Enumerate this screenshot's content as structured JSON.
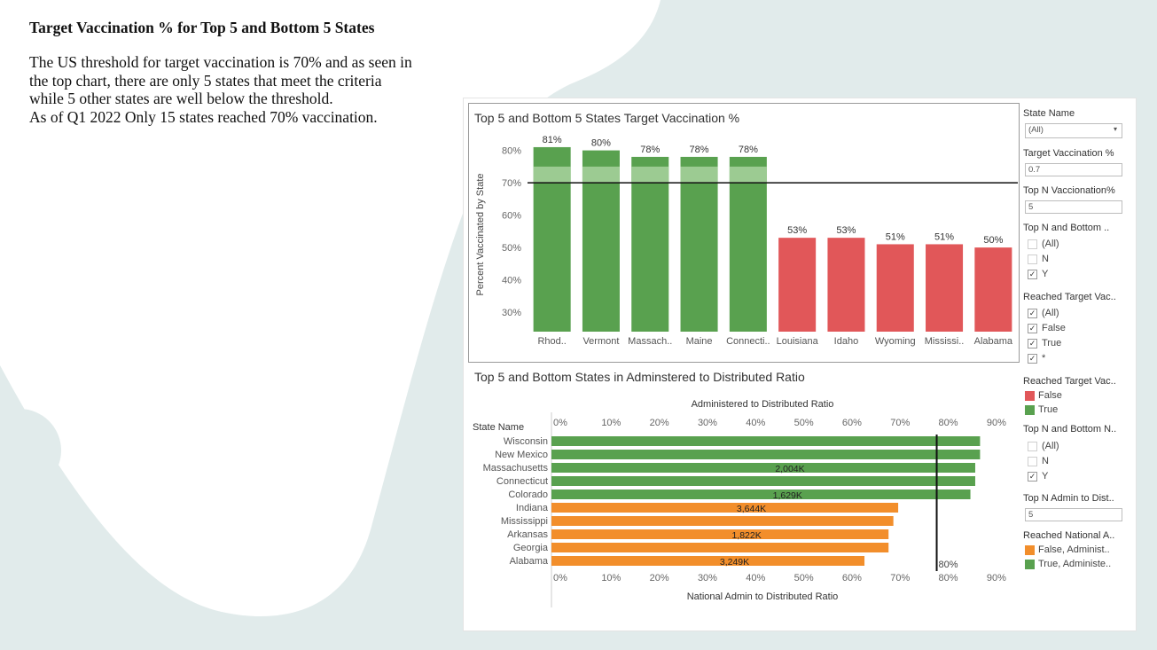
{
  "slide": {
    "title": "Target Vaccination % for Top 5 and Bottom 5 States",
    "paragraphs": [
      "The US threshold for target vaccination is 70% and as seen in",
      "the top chart, there are only 5 states that meet the criteria",
      "while 5 other states are well below the threshold.",
      "As of Q1 2022 Only 15 states reached 70% vaccination."
    ]
  },
  "colors": {
    "green": "#59a14f",
    "red": "#e15759",
    "orange": "#f28e2b",
    "green_light": "#a8d29e",
    "background": "#e1ebeb"
  },
  "chart_data": [
    {
      "type": "bar",
      "title": "Top 5 and Bottom 5 States Target Vaccination %",
      "ylabel": "Percent Vaccinated by State",
      "ylim": [
        24,
        84
      ],
      "yticks": [
        "30%",
        "40%",
        "50%",
        "60%",
        "70%",
        "80%"
      ],
      "reference_line": 70,
      "categories": [
        "Rhod..",
        "Vermont",
        "Massach..",
        "Maine",
        "Connecti..",
        "Louisiana",
        "Idaho",
        "Wyoming",
        "Mississi..",
        "Alabama"
      ],
      "values": [
        81,
        80,
        78,
        78,
        78,
        53,
        53,
        51,
        51,
        50
      ],
      "labels": [
        "81%",
        "80%",
        "78%",
        "78%",
        "78%",
        "53%",
        "53%",
        "51%",
        "51%",
        "50%"
      ],
      "reached": [
        true,
        true,
        true,
        true,
        true,
        false,
        false,
        false,
        false,
        false
      ],
      "band": [
        70,
        75
      ]
    },
    {
      "type": "bar",
      "orientation": "horizontal",
      "title": "Top 5 and Bottom States in Adminstered to Distributed Ratio",
      "top_axis_label": "Administered to Distributed Ratio",
      "xlabel": "National Admin to Distributed Ratio",
      "row_header": "State Name",
      "xlim": [
        0,
        95
      ],
      "xticks": [
        "0%",
        "10%",
        "20%",
        "30%",
        "40%",
        "50%",
        "60%",
        "70%",
        "80%",
        "90%"
      ],
      "reference_line": 80,
      "reference_label": "80%",
      "categories": [
        "Wisconsin",
        "New Mexico",
        "Massachusetts",
        "Connecticut",
        "Colorado",
        "Indiana",
        "Mississippi",
        "Arkansas",
        "Georgia",
        "Alabama"
      ],
      "values": [
        89,
        89,
        88,
        88,
        87,
        72,
        71,
        70,
        70,
        65
      ],
      "labels": [
        "",
        "",
        "2,004K",
        "",
        "1,629K",
        "3,644K",
        "",
        "1,822K",
        "",
        "3,249K"
      ],
      "reached": [
        true,
        true,
        true,
        true,
        true,
        false,
        false,
        false,
        false,
        false
      ]
    }
  ],
  "sidebar": {
    "state_name": {
      "label": "State Name",
      "value": "(All)"
    },
    "target_vacc": {
      "label": "Target Vaccination %",
      "value": "0.7"
    },
    "top_n_vacc": {
      "label": "Top N Vaccionation%",
      "value": "5"
    },
    "top_bottom_1": {
      "label": "Top N and  Bottom ..",
      "options": [
        {
          "label": "(All)",
          "checked": false
        },
        {
          "label": "N",
          "checked": false
        },
        {
          "label": "Y",
          "checked": true
        }
      ]
    },
    "reached_1": {
      "label": "Reached Target Vac..",
      "options": [
        {
          "label": "(All)",
          "checked": true
        },
        {
          "label": "False",
          "checked": true
        },
        {
          "label": "True",
          "checked": true
        },
        {
          "label": "*",
          "checked": true
        }
      ]
    },
    "legend_1": {
      "label": "Reached Target Vac..",
      "items": [
        {
          "label": "False",
          "color": "#e15759"
        },
        {
          "label": "True",
          "color": "#59a14f"
        }
      ]
    },
    "top_bottom_2": {
      "label": "Top N and Bottom N..",
      "options": [
        {
          "label": "(All)",
          "checked": false
        },
        {
          "label": "N",
          "checked": false
        },
        {
          "label": "Y",
          "checked": true
        }
      ]
    },
    "top_n_admin": {
      "label": "Top N Admin to Dist..",
      "value": "5"
    },
    "legend_2": {
      "label": "Reached National A..",
      "items": [
        {
          "label": "False, Administ..",
          "color": "#f28e2b"
        },
        {
          "label": "True, Administe..",
          "color": "#59a14f"
        }
      ]
    }
  }
}
